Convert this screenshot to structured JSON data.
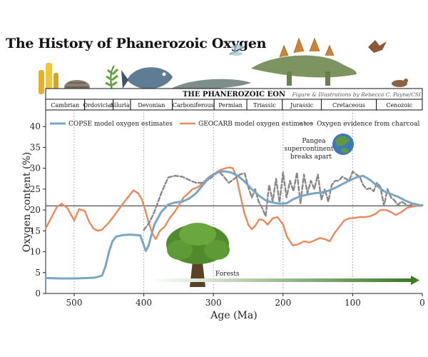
{
  "title": "The History of Phanerozoic Oxygen",
  "header": {
    "eon": "THE PHANEROZOIC EON",
    "credit": "Figure & Illustrations by Rebecca C. Payne/CSI",
    "periods": [
      {
        "name": "Cambrian",
        "start": 541,
        "end": 485
      },
      {
        "name": "Ordovician",
        "start": 485,
        "end": 444
      },
      {
        "name": "Silurian",
        "start": 444,
        "end": 419
      },
      {
        "name": "Devonian",
        "start": 419,
        "end": 359
      },
      {
        "name": "Carboniferous",
        "start": 359,
        "end": 299
      },
      {
        "name": "Permian",
        "start": 299,
        "end": 252
      },
      {
        "name": "Triassic",
        "start": 252,
        "end": 201
      },
      {
        "name": "Jurassic",
        "start": 201,
        "end": 145
      },
      {
        "name": "Cretaceous",
        "start": 145,
        "end": 66
      },
      {
        "name": "Cenozoic",
        "start": 66,
        "end": 0
      }
    ]
  },
  "annotations": {
    "pangea": [
      "Pangea",
      "supercontinent",
      "breaks apart"
    ],
    "forests": "Forests"
  },
  "colors": {
    "copse": "#7aa6c6",
    "geocarb": "#e8895c",
    "charcoal": "#888888",
    "forest_arrow": "#3c7a28"
  },
  "chart_data": {
    "type": "line",
    "xlabel": "Age (Ma)",
    "ylabel": "Oxygen content (%)",
    "xlim": [
      541,
      0
    ],
    "ylim": [
      0,
      45
    ],
    "xticks": [
      500,
      400,
      300,
      200,
      100,
      0
    ],
    "yticks": [
      0,
      5,
      10,
      15,
      20,
      25,
      30,
      35,
      40
    ],
    "gridlines_x": [
      500,
      400,
      300,
      200,
      100
    ],
    "reference_y": 21,
    "series": [
      {
        "name": "COPSE model oxygen estimates",
        "style": "solid",
        "x": [
          541,
          520,
          500,
          480,
          470,
          460,
          455,
          450,
          445,
          440,
          430,
          420,
          410,
          405,
          400,
          397,
          393,
          390,
          385,
          375,
          365,
          355,
          345,
          335,
          325,
          315,
          305,
          295,
          285,
          275,
          265,
          255,
          245,
          235,
          225,
          215,
          205,
          195,
          185,
          175,
          165,
          155,
          145,
          135,
          125,
          115,
          105,
          95,
          85,
          75,
          65,
          55,
          45,
          35,
          25,
          15,
          5,
          0
        ],
        "y": [
          3.7,
          3.6,
          3.6,
          3.7,
          3.8,
          4.3,
          6.5,
          10,
          12.5,
          13.6,
          14.0,
          14.1,
          14.0,
          13.9,
          11.5,
          10.2,
          11.5,
          13.5,
          16.5,
          19.5,
          21.3,
          21.8,
          22.0,
          22.7,
          24.0,
          26.0,
          28.0,
          29.0,
          29.3,
          29.0,
          28.2,
          26.8,
          25.0,
          23.5,
          22.3,
          21.8,
          21.5,
          21.6,
          22.6,
          23.3,
          23.7,
          24.0,
          24.2,
          24.6,
          25.3,
          26.2,
          27.0,
          27.8,
          28.2,
          27.2,
          25.8,
          24.5,
          23.8,
          23.2,
          22.3,
          21.6,
          21.2,
          21.1
        ]
      },
      {
        "name": "GEOCARB model oxygen estimates",
        "style": "solid",
        "x": [
          541,
          535,
          525,
          518,
          510,
          500,
          493,
          485,
          478,
          472,
          466,
          460,
          450,
          440,
          430,
          422,
          415,
          408,
          403,
          398,
          393,
          388,
          383,
          377,
          370,
          363,
          356,
          350,
          343,
          336,
          330,
          322,
          315,
          306,
          298,
          290,
          283,
          277,
          272,
          267,
          262,
          256,
          250,
          245,
          240,
          234,
          228,
          222,
          215,
          208,
          200,
          194,
          186,
          178,
          170,
          162,
          155,
          147,
          140,
          133,
          126,
          119,
          112,
          105,
          97,
          90,
          82,
          75,
          68,
          60,
          52,
          45,
          38,
          30,
          22,
          15,
          8,
          0
        ],
        "y": [
          15.6,
          17.5,
          20.7,
          21.5,
          20.5,
          17.5,
          20.2,
          19.8,
          17.0,
          15.5,
          15.0,
          15.3,
          17.0,
          19.2,
          21.5,
          23.2,
          24.7,
          24.0,
          22.6,
          20.0,
          17.0,
          14.5,
          13.0,
          15.0,
          16.0,
          18.0,
          19.5,
          21.0,
          23.0,
          24.0,
          25.0,
          25.5,
          26.5,
          28.0,
          28.8,
          29.6,
          30.0,
          30.2,
          30.0,
          28.0,
          24.0,
          19.5,
          16.5,
          15.4,
          16.2,
          17.8,
          17.5,
          16.5,
          18.0,
          18.3,
          16.5,
          13.5,
          11.5,
          11.8,
          12.5,
          12.2,
          12.7,
          13.3,
          13.0,
          12.5,
          14.5,
          16.0,
          17.5,
          18.0,
          18.1,
          18.3,
          18.3,
          18.5,
          19.0,
          20.0,
          20.0,
          19.5,
          18.8,
          19.5,
          20.5,
          20.8,
          21.0,
          21.0
        ]
      },
      {
        "name": "Oxygen evidence from charcoal",
        "style": "dashed",
        "x": [
          400,
          392,
          385,
          375,
          365,
          355,
          345,
          335,
          325,
          315,
          305,
          298,
          292,
          285,
          278,
          270,
          262,
          255,
          250,
          245,
          240,
          235,
          230,
          225,
          220,
          215,
          210,
          205,
          200,
          195,
          190,
          185,
          180,
          175,
          170,
          165,
          160,
          155,
          150,
          145,
          140,
          135,
          130,
          125,
          120,
          115,
          110,
          105,
          100,
          95,
          90,
          85,
          80,
          75,
          70,
          65,
          60,
          55,
          50,
          45,
          40,
          35,
          30,
          25,
          20,
          15,
          10,
          5,
          0
        ],
        "y": [
          15.2,
          17.0,
          19.5,
          24.0,
          27.8,
          28.2,
          28.0,
          27.2,
          26.5,
          26.5,
          27.5,
          28.5,
          29.2,
          28.0,
          26.5,
          27.5,
          28.5,
          28.8,
          25.5,
          23.0,
          25.0,
          22.0,
          20.5,
          18.5,
          26.0,
          22.0,
          27.5,
          21.8,
          29.0,
          23.0,
          27.0,
          24.5,
          29.0,
          21.5,
          28.5,
          24.0,
          27.0,
          25.0,
          28.5,
          22.5,
          25.0,
          22.0,
          26.0,
          27.0,
          27.0,
          28.0,
          27.5,
          27.0,
          29.2,
          28.5,
          28.0,
          26.0,
          25.0,
          25.2,
          24.5,
          26.5,
          25.5,
          21.0,
          25.0,
          23.0,
          22.3,
          21.2,
          22.0,
          21.5,
          21.0,
          21.3,
          21.5,
          21.0,
          21.2
        ]
      }
    ],
    "legend_position": "top"
  }
}
